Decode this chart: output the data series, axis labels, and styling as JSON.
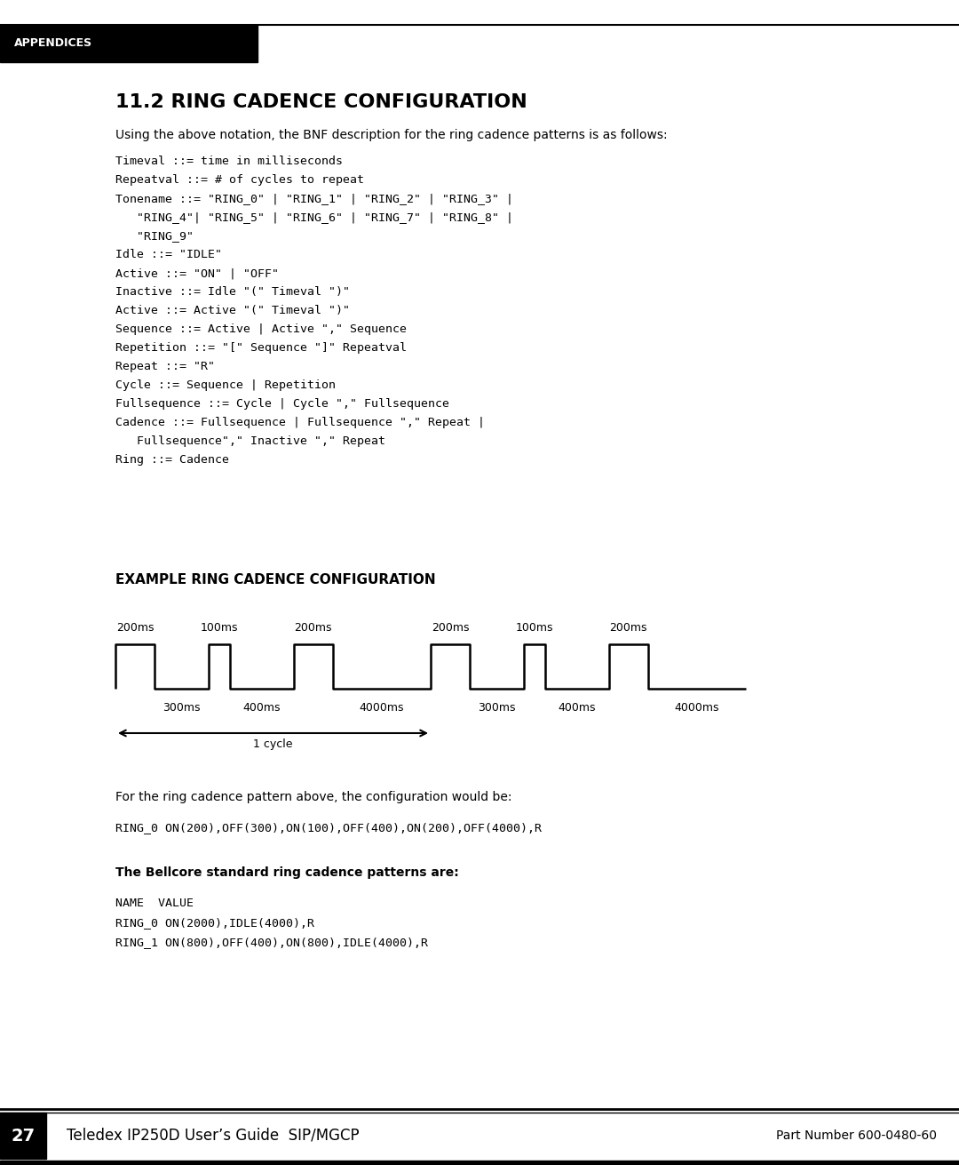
{
  "bg_color": "#ffffff",
  "header_text": "APPENDICES",
  "title": "11.2 RING CADENCE CONFIGURATION",
  "subtitle": "Using the above notation, the BNF description for the ring cadence patterns is as follows:",
  "bnf_lines": [
    "Timeval ::= time in milliseconds",
    "Repeatval ::= # of cycles to repeat",
    "Tonename ::= \"RING_0\" | \"RING_1\" | \"RING_2\" | \"RING_3\" |",
    "   \"RING_4\"| \"RING_5\" | \"RING_6\" | \"RING_7\" | \"RING_8\" |",
    "   \"RING_9\"",
    "Idle ::= \"IDLE\"",
    "Active ::= \"ON\" | \"OFF\"",
    "Inactive ::= Idle \"(\" Timeval \")\"",
    "Active ::= Active \"(\" Timeval \")\"",
    "Sequence ::= Active | Active \",\" Sequence",
    "Repetition ::= \"[\" Sequence \"]\" Repeatval",
    "Repeat ::= \"R\"",
    "Cycle ::= Sequence | Repetition",
    "Fullsequence ::= Cycle | Cycle \",\" Fullsequence",
    "Cadence ::= Fullsequence | Fullsequence \",\" Repeat |",
    "   Fullsequence\",\" Inactive \",\" Repeat",
    "Ring ::= Cadence"
  ],
  "diagram_title": "EXAMPLE RING CADENCE CONFIGURATION",
  "top_labels": [
    "200ms",
    "100ms",
    "200ms",
    "200ms",
    "100ms",
    "200ms"
  ],
  "bottom_labels": [
    "300ms",
    "400ms",
    "4000ms",
    "300ms",
    "400ms",
    "4000ms"
  ],
  "seg_widths": [
    40,
    55,
    22,
    65,
    40,
    100,
    40,
    55,
    22,
    65,
    40,
    100
  ],
  "seg_highs": [
    1,
    0,
    1,
    0,
    1,
    0,
    1,
    0,
    1,
    0,
    1,
    0
  ],
  "para_text": "For the ring cadence pattern above, the configuration would be:",
  "config_text": "RING_0 ON(200),OFF(300),ON(100),OFF(400),ON(200),OFF(4000),R",
  "bellcore_title": "The Bellcore standard ring cadence patterns are:",
  "table_lines": [
    "NAME  VALUE",
    "RING_0 ON(2000),IDLE(4000),R",
    "RING_1 ON(800),OFF(400),ON(800),IDLE(4000),R"
  ],
  "footer_page": "27",
  "footer_title": "Teledex IP250D User’s Guide  SIP/MGCP",
  "footer_right": "Part Number 600-0480-60"
}
